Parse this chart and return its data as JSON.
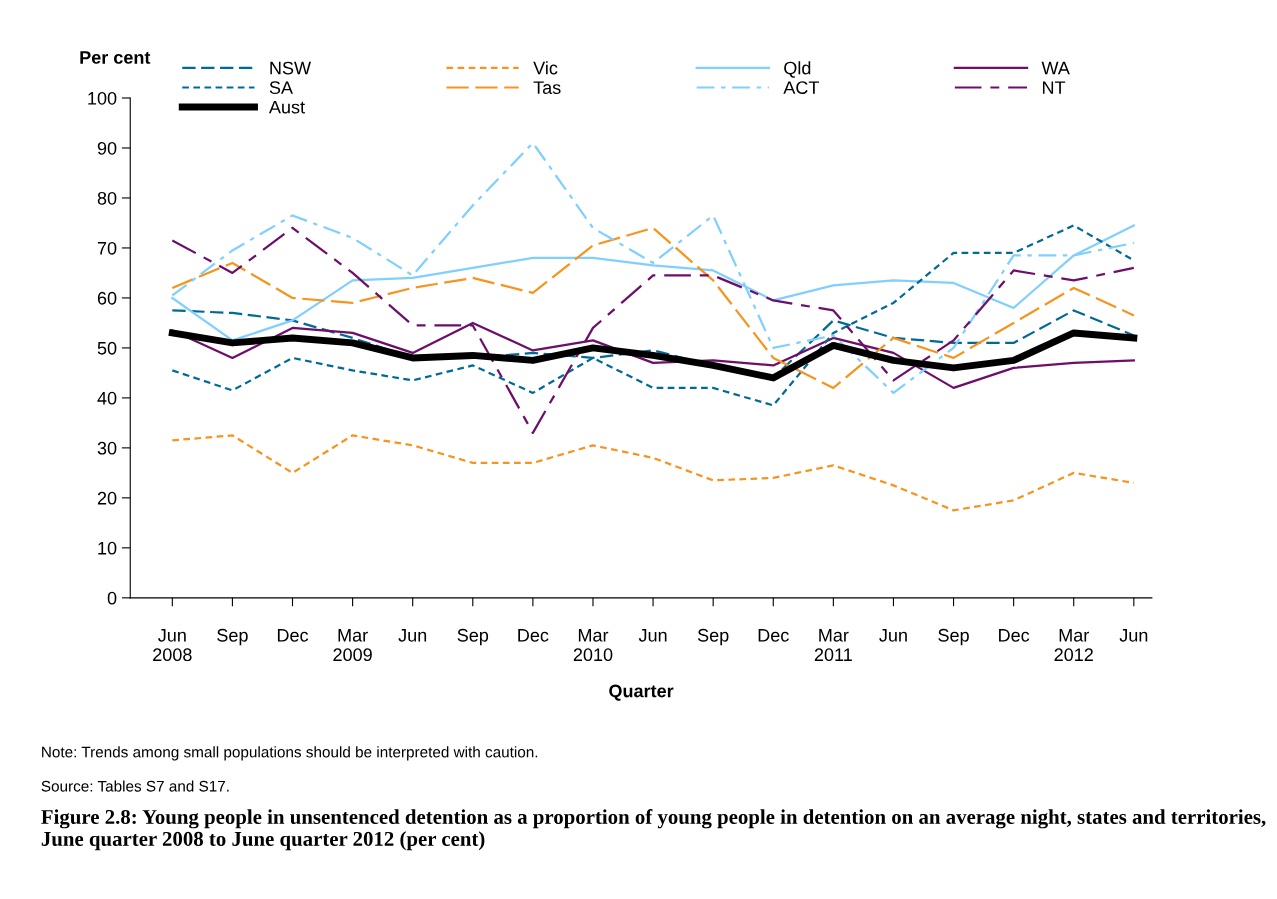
{
  "chart_data": {
    "type": "line",
    "title": "Figure 2.8: Young people in unsentenced detention as a proportion of young people in detention on an average night, states and territories, June quarter 2008 to June quarter 2012 (per cent)",
    "xlabel": "Quarter",
    "ylabel": "Per cent",
    "categories": [
      "Jun\n2008",
      "Sep",
      "Dec",
      "Mar\n2009",
      "Jun",
      "Sep",
      "Dec",
      "Mar\n2010",
      "Jun",
      "Sep",
      "Dec",
      "Mar\n2011",
      "Jun",
      "Sep",
      "Dec",
      "Mar\n2012",
      "Jun"
    ],
    "ylim": [
      0,
      100
    ],
    "yticks": [
      0,
      10,
      20,
      30,
      40,
      50,
      60,
      70,
      80,
      90,
      100
    ],
    "grid": false,
    "legend": "top",
    "series": [
      {
        "name": "NSW",
        "color": "#006a96",
        "line_style": "dashed",
        "values": [
          57.5,
          57,
          55.5,
          52,
          48,
          48,
          49,
          48,
          49.5,
          46.5,
          44,
          55.5,
          52,
          51,
          51,
          57.5,
          52.5
        ]
      },
      {
        "name": "Vic",
        "color": "#f7941d",
        "line_style": "dotted",
        "values": [
          31.5,
          32.5,
          25,
          32.5,
          30.5,
          27,
          27,
          30.5,
          28,
          23.5,
          24,
          26.5,
          22.5,
          17.5,
          19.5,
          25,
          23
        ]
      },
      {
        "name": "Qld",
        "color": "#7fcfff",
        "line_style": "solid",
        "values": [
          60,
          51.5,
          55.5,
          63.5,
          64,
          66,
          68,
          68,
          66.5,
          65.5,
          59.5,
          62.5,
          63.5,
          63,
          58,
          68.5,
          74.5
        ]
      },
      {
        "name": "WA",
        "color": "#6d0e6b",
        "line_style": "solid",
        "values": [
          53.5,
          48,
          54,
          53,
          49,
          55,
          49.5,
          51.5,
          47,
          47.5,
          46.5,
          52,
          49,
          42,
          46,
          47,
          47.5
        ]
      },
      {
        "name": "SA",
        "color": "#006a96",
        "line_style": "dotted",
        "values": [
          45.5,
          41.5,
          48,
          45.5,
          43.5,
          46.5,
          41,
          48,
          42,
          42,
          38.5,
          53,
          59,
          69,
          69,
          74.5,
          67.5
        ]
      },
      {
        "name": "Tas",
        "color": "#f7941d",
        "line_style": "longdash",
        "values": [
          62,
          67,
          60,
          59,
          62,
          64,
          61,
          70.5,
          74,
          63.5,
          48,
          42,
          52,
          48,
          55,
          62,
          56.5
        ]
      },
      {
        "name": "ACT",
        "color": "#7fcfff",
        "line_style": "dashdot",
        "values": [
          60.5,
          69.5,
          76.5,
          72,
          64.5,
          78.5,
          91,
          74,
          67,
          76.5,
          50,
          52.5,
          41,
          50,
          68.5,
          68.5,
          71
        ]
      },
      {
        "name": "NT",
        "color": "#6d0e6b",
        "line_style": "longshortdash",
        "values": [
          71.5,
          65,
          74,
          65,
          54.5,
          54.5,
          33,
          54,
          64.5,
          64.5,
          59.5,
          57.5,
          43.5,
          51.5,
          65.5,
          63.5,
          66
        ]
      },
      {
        "name": "Aust",
        "color": "#000000",
        "line_style": "solid",
        "values": [
          53,
          51,
          52,
          51,
          48,
          48.5,
          47.5,
          50,
          48.5,
          46.5,
          44,
          50.5,
          47.5,
          46,
          47.5,
          53,
          52
        ]
      }
    ],
    "annotations": [
      "Note: Trends among small populations should be interpreted with caution.",
      "Source: Tables S7 and S17."
    ]
  }
}
